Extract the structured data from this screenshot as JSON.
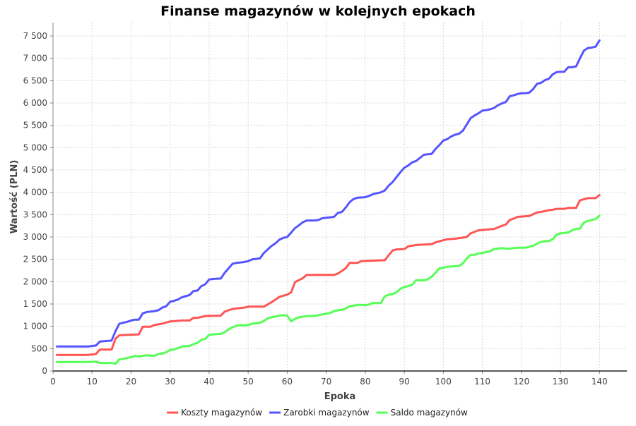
{
  "chart_data": {
    "type": "line",
    "title": "Finanse magazynów w kolejnych epokach",
    "xlabel": "Epoka",
    "ylabel": "Wartość (PLN)",
    "xlim": [
      0,
      147
    ],
    "ylim": [
      0,
      7800
    ],
    "x_ticks": [
      0,
      10,
      20,
      30,
      40,
      50,
      60,
      70,
      80,
      90,
      100,
      110,
      120,
      130,
      140
    ],
    "y_ticks": [
      0,
      500,
      1000,
      1500,
      2000,
      2500,
      3000,
      3500,
      4000,
      4500,
      5000,
      5500,
      6000,
      6500,
      7000,
      7500
    ],
    "y_tick_labels": [
      "0",
      "500",
      "1 000",
      "1 500",
      "2 000",
      "2 500",
      "3 000",
      "3 500",
      "4 000",
      "4 500",
      "5 000",
      "5 500",
      "6 000",
      "6 500",
      "7 000",
      "7 500"
    ],
    "grid": true,
    "legend_position": "bottom",
    "series": [
      {
        "name": "Koszty magazynów",
        "color": "#ff5555",
        "x": [
          1,
          9,
          11,
          12,
          15,
          16,
          17,
          22,
          23,
          25,
          26,
          28,
          30,
          33,
          35,
          36,
          37,
          39,
          43,
          44,
          46,
          49,
          50,
          54,
          56,
          58,
          60,
          61,
          62,
          64,
          65,
          72,
          73,
          75,
          76,
          78,
          79,
          82,
          85,
          87,
          88,
          90,
          91,
          93,
          97,
          98,
          101,
          103,
          106,
          107,
          109,
          113,
          115,
          116,
          117,
          118,
          119,
          122,
          124,
          125,
          127,
          128,
          129,
          131,
          132,
          133,
          134,
          135,
          137,
          139,
          140
        ],
        "y": [
          360,
          360,
          380,
          480,
          480,
          720,
          800,
          820,
          990,
          990,
          1030,
          1060,
          1110,
          1130,
          1130,
          1190,
          1190,
          1230,
          1240,
          1330,
          1390,
          1420,
          1440,
          1440,
          1540,
          1660,
          1710,
          1760,
          1990,
          2080,
          2150,
          2150,
          2180,
          2300,
          2420,
          2420,
          2460,
          2470,
          2480,
          2700,
          2720,
          2730,
          2790,
          2820,
          2840,
          2880,
          2950,
          2960,
          3000,
          3080,
          3150,
          3180,
          3250,
          3280,
          3380,
          3410,
          3450,
          3470,
          3550,
          3560,
          3600,
          3610,
          3630,
          3630,
          3650,
          3650,
          3650,
          3820,
          3870,
          3870,
          3940
        ]
      },
      {
        "name": "Zarobki magazynów",
        "color": "#5555ff",
        "x": [
          1,
          9,
          11,
          12,
          15,
          16,
          17,
          18,
          19,
          20,
          21,
          22,
          23,
          24,
          26,
          27,
          28,
          29,
          30,
          31,
          32,
          33,
          35,
          36,
          37,
          38,
          39,
          40,
          41,
          43,
          44,
          45,
          46,
          47,
          49,
          50,
          51,
          53,
          54,
          55,
          56,
          57,
          58,
          59,
          60,
          61,
          62,
          63,
          64,
          65,
          67,
          68,
          69,
          71,
          72,
          73,
          74,
          75,
          76,
          77,
          78,
          80,
          81,
          82,
          84,
          85,
          86,
          87,
          88,
          89,
          90,
          91,
          92,
          93,
          95,
          96,
          97,
          98,
          99,
          100,
          101,
          102,
          103,
          104,
          105,
          106,
          107,
          108,
          109,
          110,
          111,
          112,
          113,
          114,
          115,
          116,
          117,
          118,
          119,
          120,
          121,
          122,
          123,
          124,
          125,
          126,
          127,
          128,
          129,
          130,
          131,
          132,
          133,
          134,
          135,
          136,
          137,
          138,
          139,
          140
        ],
        "y": [
          550,
          550,
          570,
          660,
          680,
          890,
          1060,
          1080,
          1100,
          1130,
          1150,
          1150,
          1290,
          1320,
          1340,
          1360,
          1420,
          1450,
          1550,
          1570,
          1600,
          1650,
          1700,
          1790,
          1800,
          1900,
          1940,
          2050,
          2060,
          2070,
          2200,
          2300,
          2400,
          2420,
          2440,
          2460,
          2500,
          2520,
          2640,
          2720,
          2800,
          2860,
          2940,
          2980,
          3000,
          3100,
          3200,
          3260,
          3330,
          3370,
          3370,
          3380,
          3420,
          3440,
          3450,
          3540,
          3560,
          3660,
          3780,
          3850,
          3880,
          3890,
          3920,
          3960,
          4000,
          4040,
          4150,
          4230,
          4340,
          4450,
          4550,
          4600,
          4670,
          4700,
          4840,
          4850,
          4860,
          4970,
          5060,
          5160,
          5190,
          5250,
          5290,
          5310,
          5380,
          5520,
          5660,
          5720,
          5770,
          5830,
          5840,
          5860,
          5890,
          5950,
          5990,
          6020,
          6150,
          6170,
          6200,
          6220,
          6220,
          6230,
          6310,
          6430,
          6450,
          6510,
          6540,
          6640,
          6690,
          6700,
          6700,
          6800,
          6800,
          6820,
          7000,
          7170,
          7230,
          7240,
          7260,
          7400
        ]
      },
      {
        "name": "Saldo magazynów",
        "color": "#55ff55",
        "x": [
          1,
          9,
          11,
          12,
          15,
          16,
          17,
          18,
          19,
          20,
          21,
          22,
          23,
          24,
          26,
          27,
          28,
          29,
          30,
          31,
          32,
          33,
          35,
          36,
          37,
          38,
          39,
          40,
          41,
          43,
          44,
          45,
          46,
          47,
          48,
          49,
          50,
          51,
          53,
          54,
          55,
          56,
          57,
          58,
          59,
          60,
          61,
          62,
          63,
          65,
          67,
          68,
          70,
          71,
          72,
          73,
          74,
          75,
          76,
          77,
          78,
          79,
          80,
          81,
          82,
          84,
          85,
          86,
          87,
          88,
          89,
          90,
          91,
          92,
          93,
          95,
          96,
          97,
          98,
          99,
          100,
          101,
          102,
          104,
          105,
          106,
          107,
          108,
          109,
          111,
          112,
          113,
          115,
          116,
          117,
          118,
          119,
          121,
          122,
          123,
          124,
          125,
          126,
          127,
          128,
          129,
          130,
          131,
          132,
          133,
          134,
          135,
          136,
          137,
          138,
          139,
          140
        ],
        "y": [
          200,
          200,
          210,
          180,
          180,
          160,
          260,
          270,
          290,
          310,
          340,
          320,
          340,
          350,
          340,
          380,
          390,
          420,
          470,
          480,
          510,
          550,
          560,
          600,
          630,
          700,
          720,
          810,
          820,
          830,
          870,
          930,
          980,
          1010,
          1030,
          1020,
          1030,
          1060,
          1080,
          1120,
          1180,
          1200,
          1220,
          1240,
          1250,
          1240,
          1110,
          1170,
          1200,
          1230,
          1230,
          1250,
          1280,
          1300,
          1340,
          1360,
          1370,
          1400,
          1450,
          1460,
          1480,
          1480,
          1470,
          1490,
          1520,
          1520,
          1670,
          1710,
          1720,
          1760,
          1840,
          1880,
          1900,
          1930,
          2030,
          2030,
          2050,
          2110,
          2200,
          2300,
          2310,
          2330,
          2340,
          2350,
          2410,
          2520,
          2600,
          2600,
          2630,
          2660,
          2680,
          2730,
          2750,
          2740,
          2740,
          2750,
          2760,
          2760,
          2780,
          2800,
          2850,
          2890,
          2900,
          2910,
          2950,
          3050,
          3080,
          3090,
          3100,
          3150,
          3180,
          3190,
          3320,
          3360,
          3380,
          3400,
          3480
        ]
      }
    ]
  }
}
